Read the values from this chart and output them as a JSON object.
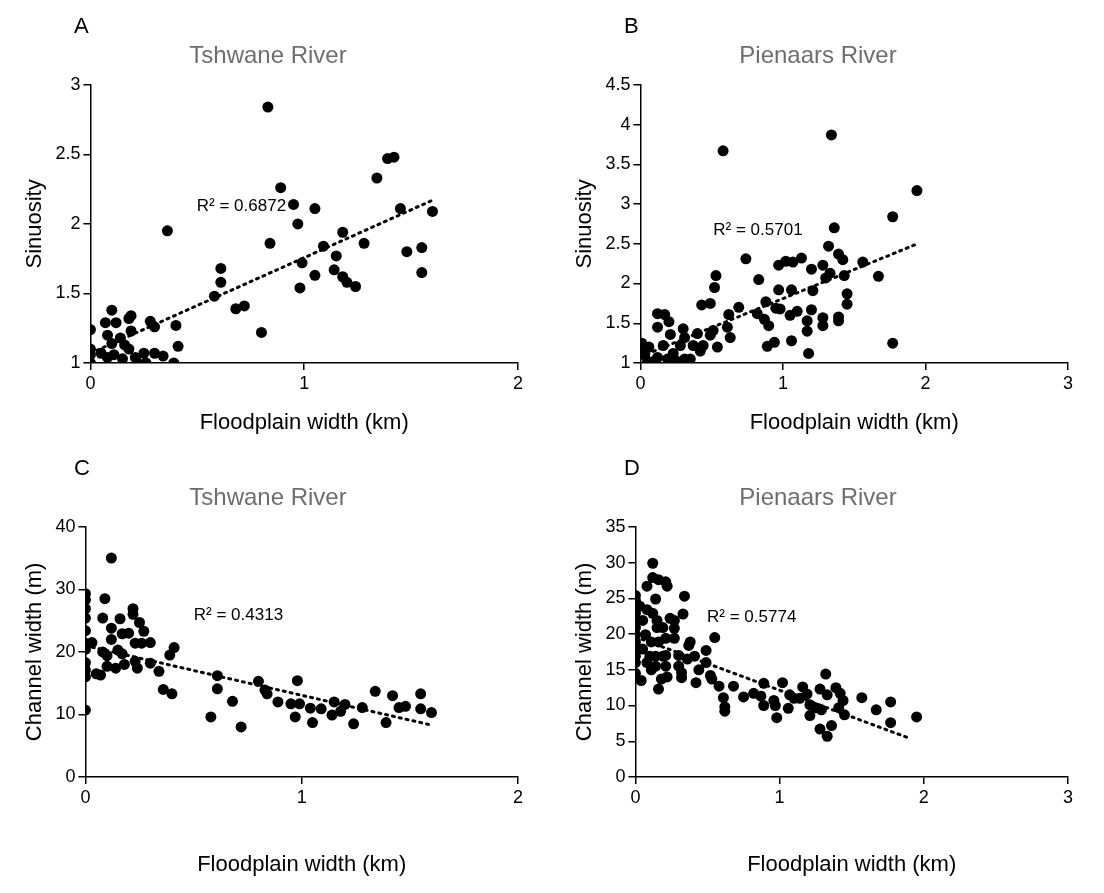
{
  "chart_data": [
    {
      "type": "scatter",
      "title": "Tshwane River",
      "xlabel": "Floodplain width (km)",
      "ylabel": "Sinuosity",
      "xlim": [
        0,
        2
      ],
      "xticks": [
        0,
        1,
        2
      ],
      "ylim": [
        1,
        3
      ],
      "yticks": [
        1,
        1.5,
        2,
        2.5,
        3
      ],
      "annotations": [
        "A",
        "R² = 0.6872"
      ],
      "series": [
        {
          "type": "scatter",
          "color": "#000000",
          "marker": "circle",
          "x": [
            0.83,
            1.39,
            1.42,
            1.34,
            0.89,
            0.95,
            1.05,
            1.45,
            1.6,
            0.97,
            0.36,
            1.18,
            0.84,
            1.28,
            1.55,
            1.09,
            1.15,
            1.48,
            0.99,
            1.55,
            1.14,
            1.18,
            1.05,
            1.2,
            1.24,
            0.98,
            0.61,
            0.61,
            0.58,
            0.68,
            0.72,
            0.8,
            0.4,
            0.41,
            0.39,
            0,
            0,
            0,
            0,
            0.05,
            0.07,
            0.1,
            0.12,
            0.08,
            0.1,
            0.14,
            0.16,
            0.11,
            0.19,
            0.18,
            0.19,
            0.18,
            0.21,
            0.22,
            0.25,
            0.26,
            0.28,
            0.3,
            0.3,
            0.34,
            0.08,
            0.15
          ],
          "values": [
            2.84,
            2.47,
            2.48,
            2.33,
            2.26,
            2.14,
            2.11,
            2.11,
            2.09,
            2.0,
            1.95,
            1.94,
            1.86,
            1.86,
            1.83,
            1.84,
            1.77,
            1.8,
            1.72,
            1.65,
            1.67,
            1.62,
            1.63,
            1.58,
            1.55,
            1.54,
            1.68,
            1.58,
            1.48,
            1.39,
            1.41,
            1.22,
            1.27,
            1.12,
            1.0,
            1.24,
            1.1,
            1.06,
            1.0,
            1.07,
            1.29,
            1.38,
            1.29,
            1.2,
            1.14,
            1.18,
            1.13,
            1.06,
            1.34,
            1.32,
            1.23,
            1.1,
            1.04,
            1.0,
            1.07,
            1.0,
            1.3,
            1.26,
            1.07,
            1.05,
            1.04,
            1.03
          ]
        },
        {
          "type": "line",
          "color": "#000000",
          "line_style": "dotted",
          "marker": "none",
          "x": [
            0,
            1.6
          ],
          "values": [
            1.07,
            2.17
          ]
        }
      ]
    },
    {
      "type": "scatter",
      "title": "Pienaars River",
      "xlabel": "Floodplain width (km)",
      "ylabel": "Sinuosity",
      "xlim": [
        0,
        3
      ],
      "xticks": [
        0,
        1,
        2,
        3
      ],
      "ylim": [
        1,
        4.5
      ],
      "yticks": [
        1,
        1.5,
        2,
        2.5,
        3,
        3.5,
        4,
        4.5
      ],
      "annotations": [
        "B",
        "R² = 0.5701"
      ],
      "series": [
        {
          "type": "scatter",
          "color": "#000000",
          "marker": "circle",
          "x": [
            0.58,
            1.34,
            1.94,
            1.77,
            1.36,
            1.32,
            1.39,
            1.42,
            1.56,
            1.67,
            1.43,
            1.45,
            1.45,
            1.39,
            1.39,
            1.28,
            1.28,
            1.3,
            1.33,
            1.28,
            1.2,
            1.13,
            1.07,
            1.02,
            0.97,
            0.74,
            0.83,
            0.53,
            0.52,
            0.97,
            1.06,
            1.21,
            0.88,
            0.95,
            0.98,
            1.05,
            1.1,
            1.2,
            1.17,
            1.17,
            1.18,
            1.06,
            0.94,
            0.89,
            1.77,
            0.82,
            0.87,
            0.9,
            0.69,
            0.62,
            0.61,
            0.63,
            0.54,
            0.43,
            0.49,
            0.51,
            0.49,
            0.44,
            0.42,
            0.4,
            0.37,
            0.3,
            0.31,
            0.28,
            0.35,
            0.31,
            0.12,
            0.17,
            0.2,
            0.12,
            0.21,
            0.16,
            0.23,
            0.19,
            0.12,
            0.09,
            0.06,
            0.03,
            0.01,
            0.01,
            0.05,
            0.26
          ],
          "values": [
            3.67,
            3.87,
            3.17,
            2.84,
            2.7,
            2.47,
            2.37,
            2.3,
            2.27,
            2.09,
            2.1,
            1.87,
            1.74,
            1.58,
            1.53,
            1.57,
            1.47,
            2.07,
            2.13,
            2.23,
            2.18,
            2.32,
            2.27,
            2.28,
            2.23,
            2.31,
            2.05,
            2.1,
            1.95,
            1.92,
            1.92,
            1.91,
            1.77,
            1.69,
            1.68,
            1.6,
            1.65,
            1.67,
            1.53,
            1.4,
            1.12,
            1.28,
            1.26,
            1.21,
            1.25,
            1.62,
            1.55,
            1.47,
            1.7,
            1.61,
            1.45,
            1.32,
            1.2,
            1.73,
            1.75,
            1.41,
            1.35,
            1.22,
            1.15,
            1.37,
            1.22,
            1.43,
            1.32,
            1.22,
            1.05,
            1.05,
            1.62,
            1.61,
            1.52,
            1.45,
            1.36,
            1.22,
            1.12,
            1.05,
            1.07,
            1.02,
            1.2,
            1.1,
            1.25,
            1.15,
            1.02,
            1.02
          ]
        },
        {
          "type": "line",
          "color": "#000000",
          "line_style": "dotted",
          "marker": "none",
          "x": [
            0,
            1.93
          ],
          "values": [
            1.08,
            2.49
          ]
        }
      ]
    },
    {
      "type": "scatter",
      "title": "Tshwane River",
      "xlabel": "Floodplain width (km)",
      "ylabel": "Channel width (m)",
      "xlim": [
        0,
        2
      ],
      "xticks": [
        0,
        1,
        2
      ],
      "ylim": [
        0,
        40
      ],
      "yticks": [
        0,
        10,
        20,
        30,
        40
      ],
      "annotations": [
        "C",
        "R² = 0.4313"
      ],
      "series": [
        {
          "type": "scatter",
          "color": "#000000",
          "marker": "circle",
          "x": [
            0.12,
            0,
            0,
            0,
            0,
            0,
            0,
            0,
            0,
            0,
            0,
            0,
            0.03,
            0.05,
            0.07,
            0.09,
            0.08,
            0.12,
            0.12,
            0.08,
            0.1,
            0.1,
            0.14,
            0.15,
            0.16,
            0.17,
            0.2,
            0.17,
            0.18,
            0.22,
            0.22,
            0.25,
            0.27,
            0.23,
            0.26,
            0.3,
            0.23,
            0.24,
            0.3,
            0.34,
            0.39,
            0.41,
            0.36,
            0.4,
            0.61,
            0.61,
            0.58,
            0.68,
            0.72,
            0.8,
            0.83,
            0.84,
            0.89,
            0.98,
            0.95,
            0.99,
            0.97,
            1.04,
            1.09,
            1.05,
            1.15,
            1.2,
            1.18,
            1.14,
            1.24,
            1.28,
            1.34,
            1.42,
            1.39,
            1.45,
            1.48,
            1.55,
            1.55,
            1.6
          ],
          "values": [
            35.0,
            29.3,
            28.3,
            26.9,
            25.4,
            23.4,
            21.4,
            20.4,
            18.3,
            17.1,
            16.0,
            10.7,
            21.5,
            16.5,
            16.3,
            28.5,
            25.4,
            23.8,
            22.0,
            20.0,
            19.4,
            17.7,
            17.4,
            20.3,
            25.3,
            22.9,
            23.0,
            19.7,
            18.0,
            26.9,
            26.0,
            24.7,
            23.3,
            21.4,
            21.4,
            21.5,
            18.5,
            17.4,
            18.2,
            16.9,
            19.5,
            20.7,
            14.0,
            13.3,
            16.2,
            14.1,
            9.6,
            12.1,
            8.0,
            15.3,
            13.9,
            13.3,
            12.0,
            15.4,
            11.7,
            11.7,
            9.6,
            11.0,
            10.9,
            8.7,
            12.0,
            11.6,
            10.5,
            9.9,
            8.5,
            11.1,
            13.7,
            13.0,
            8.7,
            11.1,
            11.3,
            13.3,
            10.9,
            10.3
          ]
        },
        {
          "type": "line",
          "color": "#000000",
          "line_style": "dotted",
          "marker": "none",
          "x": [
            0,
            1.6
          ],
          "values": [
            21.0,
            8.3
          ]
        }
      ]
    },
    {
      "type": "scatter",
      "title": "Pienaars River",
      "xlabel": "Floodplain width (km)",
      "ylabel": "Channel width (m)",
      "xlim": [
        0,
        3
      ],
      "xticks": [
        0,
        1,
        2,
        3
      ],
      "ylim": [
        0,
        35
      ],
      "yticks": [
        0,
        5,
        10,
        15,
        20,
        25,
        30,
        35
      ],
      "annotations": [
        "D",
        "R² = 0.5774"
      ],
      "series": [
        {
          "type": "scatter",
          "color": "#000000",
          "marker": "circle",
          "x": [
            0.12,
            0.12,
            0.08,
            0.16,
            0.21,
            0.22,
            0.34,
            0,
            0,
            0.03,
            0,
            0,
            0,
            0,
            0,
            0,
            0,
            0,
            0,
            0.04,
            0.05,
            0.07,
            0.08,
            0.05,
            0.08,
            0.1,
            0.12,
            0.11,
            0.11,
            0.14,
            0.15,
            0.15,
            0.16,
            0.14,
            0.14,
            0.16,
            0.18,
            0.19,
            0.21,
            0.19,
            0.21,
            0.22,
            0.24,
            0.27,
            0.27,
            0.27,
            0.21,
            0.33,
            0.3,
            0.3,
            0.32,
            0.32,
            0.37,
            0.38,
            0.36,
            0.41,
            0.44,
            0.42,
            0.49,
            0.49,
            0.55,
            0.52,
            0.53,
            0.58,
            0.61,
            0.62,
            0.62,
            0.68,
            0.75,
            0.82,
            0.87,
            0.89,
            0.89,
            0.97,
            0.96,
            0.98,
            1.02,
            1.06,
            1.1,
            1.07,
            1.14,
            1.16,
            1.19,
            1.21,
            1.21,
            1.25,
            1.28,
            1.29,
            1.32,
            1.33,
            1.28,
            1.33,
            1.36,
            1.39,
            1.42,
            1.41,
            1.44,
            1.45,
            1.57,
            1.67,
            1.77,
            1.77,
            1.95
          ],
          "values": [
            29.9,
            27.9,
            26.7,
            27.6,
            27.3,
            26.7,
            25.3,
            25.4,
            24.7,
            23.9,
            22.9,
            21.9,
            20.9,
            19.9,
            18.9,
            17.9,
            16.9,
            16.0,
            14.5,
            13.5,
            21.9,
            19.9,
            23.4,
            17.9,
            16.0,
            16.9,
            22.9,
            18.9,
            15.0,
            24.9,
            21.9,
            20.9,
            18.9,
            16.9,
            15.5,
            12.3,
            13.7,
            20.9,
            19.4,
            16.9,
            15.5,
            14.0,
            22.2,
            21.9,
            20.8,
            19.4,
            17.0,
            22.8,
            17.0,
            15.5,
            14.6,
            13.9,
            18.4,
            18.9,
            16.5,
            16.9,
            15.0,
            13.2,
            17.7,
            16.0,
            19.5,
            14.2,
            13.7,
            12.7,
            11.1,
            9.8,
            9.2,
            12.7,
            11.2,
            11.7,
            11.3,
            13.1,
            10.0,
            10.0,
            10.7,
            8.3,
            13.2,
            9.6,
            11.0,
            11.5,
            11.0,
            12.6,
            11.6,
            10.1,
            8.6,
            9.7,
            12.3,
            9.4,
            14.4,
            11.5,
            6.7,
            5.7,
            7.2,
            12.5,
            11.7,
            9.7,
            10.7,
            8.7,
            11.1,
            9.4,
            10.5,
            7.6,
            8.4
          ]
        },
        {
          "type": "line",
          "color": "#000000",
          "line_style": "dotted",
          "marker": "none",
          "x": [
            0,
            1.89
          ],
          "values": [
            19.6,
            5.5
          ]
        }
      ]
    }
  ]
}
